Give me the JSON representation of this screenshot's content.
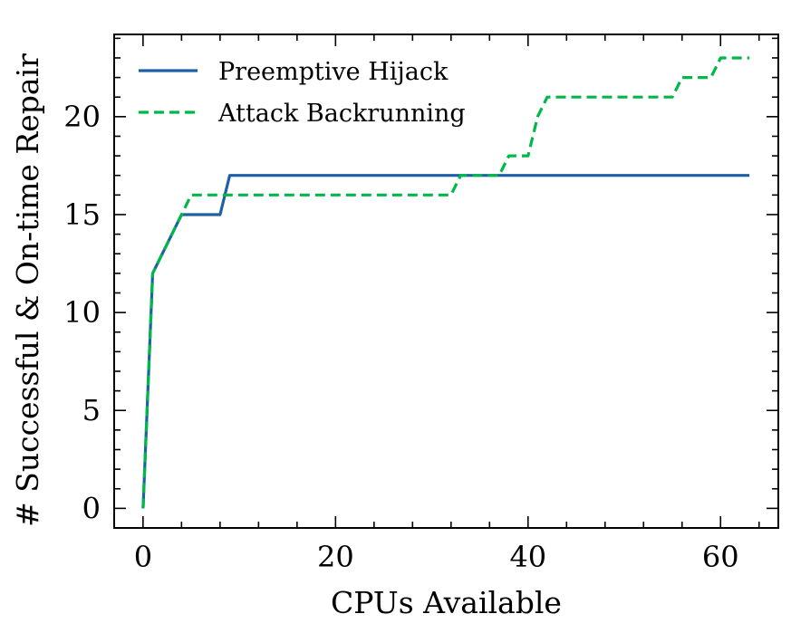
{
  "chart_data": {
    "type": "line",
    "title": "",
    "xlabel": "CPUs Available",
    "ylabel": "# Successful & On-time Repair",
    "xlim": [
      -3,
      66
    ],
    "ylim": [
      -1,
      24.2
    ],
    "xticks": [
      0,
      20,
      40,
      60
    ],
    "yticks": [
      0,
      5,
      10,
      15,
      20
    ],
    "xtick_labels": [
      "0",
      "20",
      "40",
      "60"
    ],
    "ytick_labels": [
      "0",
      "5",
      "10",
      "15",
      "20"
    ],
    "grid": false,
    "legend_position": "top-left",
    "series": [
      {
        "name": "Preemptive Hijack",
        "color": "#1f5fa8",
        "style": "solid",
        "x": [
          0,
          1,
          4,
          8,
          9,
          63
        ],
        "y": [
          0,
          12,
          15,
          15,
          17,
          17
        ]
      },
      {
        "name": "Attack Backrunning",
        "color": "#00b84a",
        "style": "dashed",
        "x": [
          0,
          1,
          4,
          5,
          32,
          33,
          37,
          38,
          39,
          40,
          41,
          42,
          55,
          56,
          58,
          59,
          60,
          63
        ],
        "y": [
          0,
          12,
          15,
          16,
          16,
          17,
          17,
          18,
          18,
          18,
          20,
          21,
          21,
          22,
          22,
          22,
          23,
          23
        ]
      }
    ]
  }
}
